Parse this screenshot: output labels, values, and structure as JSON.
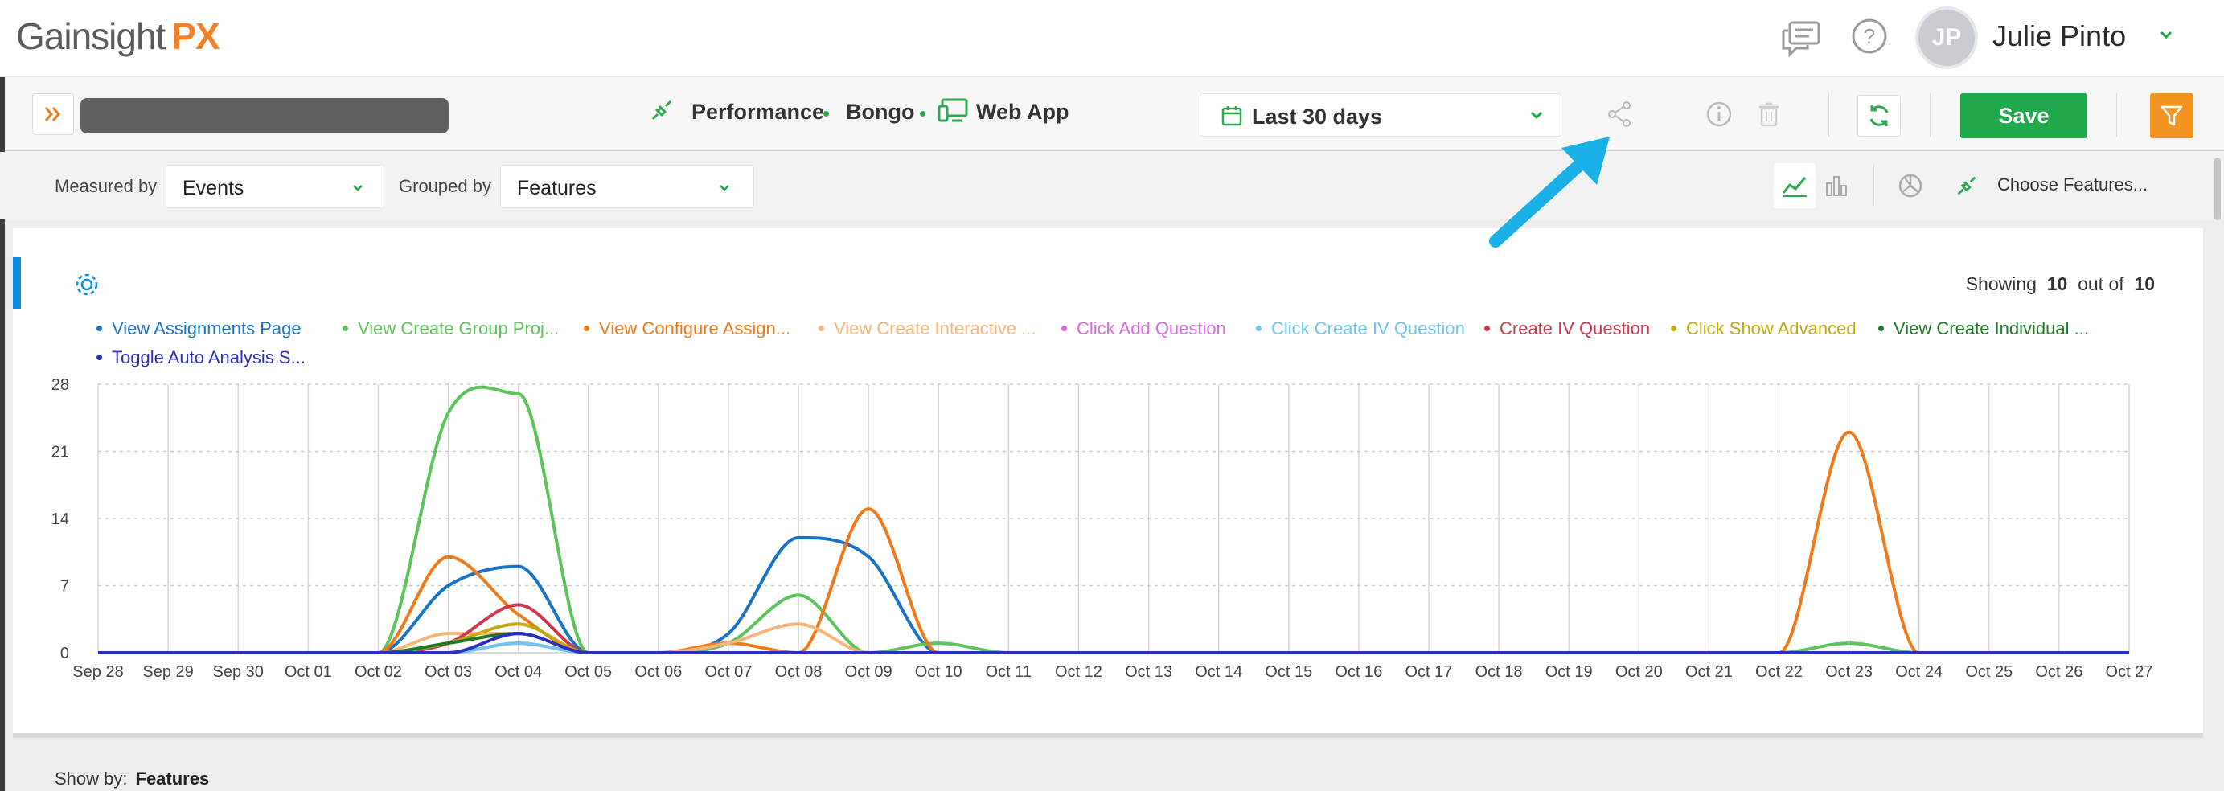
{
  "app": {
    "logo_main": "Gainsight",
    "logo_accent": "PX"
  },
  "user": {
    "initials": "JP",
    "name": "Julie Pinto"
  },
  "toolbar": {
    "crumb_1": "Performance",
    "crumb_2": "Bongo",
    "crumb_3": "Web App",
    "date_range": "Last 30 days",
    "save_label": "Save"
  },
  "controls": {
    "measured_by_label": "Measured by",
    "measured_by_value": "Events",
    "grouped_by_label": "Grouped by",
    "grouped_by_value": "Features",
    "choose_features": "Choose Features..."
  },
  "summary": {
    "prefix": "Showing",
    "shown": "10",
    "middle": "out of",
    "total": "10"
  },
  "footer": {
    "show_by_label": "Show by:",
    "show_by_value": "Features"
  },
  "colors": {
    "accent_green": "#1fa94a",
    "accent_orange": "#f39320",
    "link_blue": "#0c8de0",
    "pointer_arrow": "#1ab0e8"
  },
  "chart_data": {
    "type": "line",
    "x": [
      "Sep 28",
      "Sep 29",
      "Sep 30",
      "Oct 01",
      "Oct 02",
      "Oct 03",
      "Oct 04",
      "Oct 05",
      "Oct 06",
      "Oct 07",
      "Oct 08",
      "Oct 09",
      "Oct 10",
      "Oct 11",
      "Oct 12",
      "Oct 13",
      "Oct 14",
      "Oct 15",
      "Oct 16",
      "Oct 17",
      "Oct 18",
      "Oct 19",
      "Oct 20",
      "Oct 21",
      "Oct 22",
      "Oct 23",
      "Oct 24",
      "Oct 25",
      "Oct 26",
      "Oct 27"
    ],
    "y_ticks": [
      0,
      7,
      14,
      21,
      28
    ],
    "ylim": [
      0,
      28
    ],
    "grid": true,
    "legend_position": "top",
    "series": [
      {
        "name": "View Assignments Page",
        "color": "#1a73c4",
        "values": [
          0,
          0,
          0,
          0,
          0,
          7,
          9,
          0,
          0,
          2,
          12,
          10,
          0,
          0,
          0,
          0,
          0,
          0,
          0,
          0,
          0,
          0,
          0,
          0,
          0,
          0,
          0,
          0,
          0,
          0
        ]
      },
      {
        "name": "View Create Group Proj...",
        "color": "#5cc45a",
        "values": [
          0,
          0,
          0,
          0,
          0,
          25,
          27,
          0,
          0,
          1,
          6,
          0,
          1,
          0,
          0,
          0,
          0,
          0,
          0,
          0,
          0,
          0,
          0,
          0,
          0,
          1,
          0,
          0,
          0,
          0
        ]
      },
      {
        "name": "View Configure Assign...",
        "color": "#f07a1a",
        "values": [
          0,
          0,
          0,
          0,
          0,
          10,
          4,
          0,
          0,
          1,
          0,
          15,
          0,
          0,
          0,
          0,
          0,
          0,
          0,
          0,
          0,
          0,
          0,
          0,
          0,
          23,
          0,
          0,
          0,
          0
        ]
      },
      {
        "name": "View Create Interactive ...",
        "color": "#f7b57a",
        "values": [
          0,
          0,
          0,
          0,
          0,
          2,
          2,
          0,
          0,
          1,
          3,
          0,
          0,
          0,
          0,
          0,
          0,
          0,
          0,
          0,
          0,
          0,
          0,
          0,
          0,
          0,
          0,
          0,
          0,
          0
        ]
      },
      {
        "name": "Click Add Question",
        "color": "#d86ae0",
        "values": [
          0,
          0,
          0,
          0,
          0,
          0,
          1,
          0,
          0,
          0,
          0,
          0,
          0,
          0,
          0,
          0,
          0,
          0,
          0,
          0,
          0,
          0,
          0,
          0,
          0,
          0,
          0,
          0,
          0,
          0
        ]
      },
      {
        "name": "Click Create IV Question",
        "color": "#6fc5ef",
        "values": [
          0,
          0,
          0,
          0,
          0,
          0,
          1,
          0,
          0,
          0,
          0,
          0,
          0,
          0,
          0,
          0,
          0,
          0,
          0,
          0,
          0,
          0,
          0,
          0,
          0,
          0,
          0,
          0,
          0,
          0
        ]
      },
      {
        "name": "Create IV Question",
        "color": "#d0384d",
        "values": [
          0,
          0,
          0,
          0,
          0,
          1,
          5,
          0,
          0,
          0,
          0,
          0,
          0,
          0,
          0,
          0,
          0,
          0,
          0,
          0,
          0,
          0,
          0,
          0,
          0,
          0,
          0,
          0,
          0,
          0
        ]
      },
      {
        "name": "Click Show Advanced",
        "color": "#c3a80f",
        "values": [
          0,
          0,
          0,
          0,
          0,
          1,
          3,
          0,
          0,
          0,
          0,
          0,
          0,
          0,
          0,
          0,
          0,
          0,
          0,
          0,
          0,
          0,
          0,
          0,
          0,
          0,
          0,
          0,
          0,
          0
        ]
      },
      {
        "name": "View Create Individual ...",
        "color": "#1e7a2a",
        "values": [
          0,
          0,
          0,
          0,
          0,
          1,
          2,
          0,
          0,
          0,
          0,
          0,
          0,
          0,
          0,
          0,
          0,
          0,
          0,
          0,
          0,
          0,
          0,
          0,
          0,
          0,
          0,
          0,
          0,
          0
        ]
      },
      {
        "name": "Toggle Auto Analysis S...",
        "color": "#2a2fc0",
        "values": [
          0,
          0,
          0,
          0,
          0,
          0,
          2,
          0,
          0,
          0,
          0,
          0,
          0,
          0,
          0,
          0,
          0,
          0,
          0,
          0,
          0,
          0,
          0,
          0,
          0,
          0,
          0,
          0,
          0,
          0
        ]
      }
    ]
  }
}
